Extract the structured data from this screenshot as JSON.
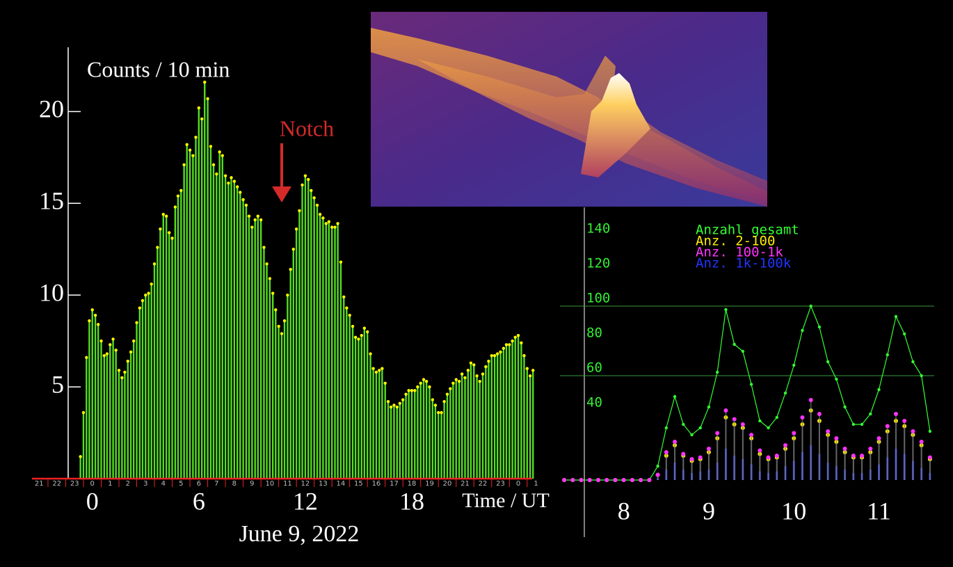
{
  "chart_data": [
    {
      "type": "bar",
      "title": "Counts / 10 min",
      "x_label": "Time / UT",
      "caption": "June 9, 2022",
      "annotation": "Notch",
      "color": "#55dd22",
      "marker_color": "#ffff00",
      "xlim": [
        -3.4,
        24.9
      ],
      "ylim": [
        0,
        23.5
      ],
      "xticks": [
        0,
        6,
        12,
        18
      ],
      "yticks": [
        5,
        10,
        15,
        20
      ],
      "hour_ticks": [
        {
          "value": -3,
          "label": "21"
        },
        {
          "value": -2,
          "label": "22"
        },
        {
          "value": -1,
          "label": "23"
        },
        0,
        1,
        2,
        3,
        4,
        5,
        6,
        7,
        8,
        9,
        10,
        11,
        12,
        13,
        14,
        15,
        16,
        17,
        18,
        19,
        20,
        21,
        22,
        23,
        {
          "value": 24,
          "label": "0"
        },
        {
          "value": 25,
          "label": "1"
        }
      ],
      "x": [
        -0.67,
        -0.5,
        -0.33,
        -0.17,
        0,
        0.17,
        0.33,
        0.5,
        0.67,
        0.83,
        1,
        1.17,
        1.33,
        1.5,
        1.67,
        1.83,
        2,
        2.17,
        2.33,
        2.5,
        2.67,
        2.83,
        3,
        3.17,
        3.33,
        3.5,
        3.67,
        3.83,
        4,
        4.17,
        4.33,
        4.5,
        4.67,
        4.83,
        5,
        5.17,
        5.33,
        5.5,
        5.67,
        5.83,
        6,
        6.17,
        6.33,
        6.5,
        6.67,
        6.83,
        7,
        7.17,
        7.33,
        7.5,
        7.67,
        7.83,
        8,
        8.17,
        8.33,
        8.5,
        8.67,
        8.83,
        9,
        9.17,
        9.33,
        9.5,
        9.67,
        9.83,
        10,
        10.17,
        10.33,
        10.5,
        10.67,
        10.83,
        11,
        11.17,
        11.33,
        11.5,
        11.67,
        11.83,
        12,
        12.17,
        12.33,
        12.5,
        12.67,
        12.83,
        13,
        13.17,
        13.33,
        13.5,
        13.67,
        13.83,
        14,
        14.17,
        14.33,
        14.5,
        14.67,
        14.83,
        15,
        15.17,
        15.33,
        15.5,
        15.67,
        15.83,
        16,
        16.17,
        16.33,
        16.5,
        16.67,
        16.83,
        17,
        17.17,
        17.33,
        17.5,
        17.67,
        17.83,
        18,
        18.17,
        18.33,
        18.5,
        18.67,
        18.83,
        19,
        19.17,
        19.33,
        19.5,
        19.67,
        19.83,
        20,
        20.17,
        20.33,
        20.5,
        20.67,
        20.83,
        21,
        21.17,
        21.33,
        21.5,
        21.67,
        21.83,
        22,
        22.17,
        22.33,
        22.5,
        22.67,
        22.83,
        23,
        23.17,
        23.33,
        23.5,
        23.67,
        23.83,
        24,
        24.17,
        24.33,
        24.5,
        24.67,
        24.83
      ],
      "values": [
        1.2,
        3.6,
        6.6,
        8.6,
        9.2,
        8.9,
        8.4,
        7.5,
        6.7,
        6.8,
        7.3,
        7.6,
        7.0,
        5.9,
        5.5,
        5.8,
        6.4,
        6.9,
        7.5,
        8.5,
        9.3,
        9.7,
        10.0,
        10.1,
        10.6,
        11.7,
        12.6,
        13.6,
        14.4,
        14.3,
        13.4,
        13.1,
        14.8,
        15.4,
        15.7,
        17.1,
        18.2,
        17.9,
        17.6,
        18.6,
        20.2,
        19.6,
        21.6,
        20.7,
        18.1,
        17.1,
        16.6,
        17.8,
        17.6,
        16.5,
        16.1,
        16.4,
        16.2,
        15.9,
        15.6,
        15.2,
        14.9,
        14.3,
        13.7,
        14.1,
        14.3,
        14.1,
        12.6,
        11.7,
        10.9,
        10.1,
        9.2,
        8.3,
        7.9,
        8.6,
        10.0,
        11.4,
        12.5,
        13.6,
        14.6,
        16.0,
        16.5,
        16.3,
        15.7,
        15.3,
        14.9,
        14.4,
        14.2,
        13.9,
        14.0,
        13.7,
        13.7,
        13.9,
        11.8,
        9.9,
        9.3,
        8.9,
        8.3,
        7.7,
        7.6,
        7.8,
        8.2,
        8.0,
        6.8,
        6.0,
        5.8,
        5.9,
        6.0,
        5.2,
        4.2,
        3.9,
        4.0,
        3.9,
        4.1,
        4.3,
        4.6,
        4.8,
        4.8,
        4.8,
        5.0,
        5.2,
        5.4,
        5.3,
        5.0,
        4.3,
        4.0,
        3.6,
        3.6,
        4.2,
        4.6,
        4.9,
        5.2,
        5.4,
        5.3,
        5.7,
        5.5,
        5.9,
        6.3,
        6.2,
        5.6,
        5.3,
        5.7,
        6.1,
        6.4,
        6.7,
        6.7,
        6.8,
        6.9,
        7.1,
        7.3,
        7.3,
        7.5,
        7.7,
        7.8,
        7.4,
        6.7,
        6.0,
        5.6,
        5.9
      ]
    },
    {
      "type": "line",
      "legend": "top-left",
      "xlim": [
        7.25,
        11.65
      ],
      "ylim": [
        0,
        156
      ],
      "xticks": [
        8,
        9,
        10,
        11
      ],
      "yticks": [
        40,
        60,
        80,
        100,
        120,
        140
      ],
      "grid_lines": [
        60,
        100
      ],
      "x": [
        7.3,
        7.4,
        7.5,
        7.6,
        7.7,
        7.8,
        7.9,
        8.0,
        8.1,
        8.2,
        8.3,
        8.4,
        8.5,
        8.6,
        8.7,
        8.8,
        8.9,
        9.0,
        9.1,
        9.2,
        9.3,
        9.4,
        9.5,
        9.6,
        9.7,
        9.8,
        9.9,
        10.0,
        10.1,
        10.2,
        10.3,
        10.4,
        10.5,
        10.6,
        10.7,
        10.8,
        10.9,
        11.0,
        11.1,
        11.2,
        11.3,
        11.4,
        11.5,
        11.6
      ],
      "series": [
        {
          "name": "Anzahl gesamt",
          "color": "#33ff33",
          "style": "line",
          "values": [
            0,
            0,
            0,
            0,
            0,
            0,
            0,
            0,
            0,
            0,
            0,
            8,
            30,
            48,
            32,
            26,
            30,
            42,
            62,
            98,
            78,
            74,
            55,
            34,
            30,
            36,
            50,
            66,
            86,
            100,
            88,
            68,
            58,
            42,
            32,
            32,
            38,
            52,
            72,
            94,
            84,
            68,
            60,
            28
          ]
        },
        {
          "name": "Anz. 2-100",
          "color": "#ffee00",
          "style": "dots",
          "values": [
            0,
            0,
            0,
            0,
            0,
            0,
            0,
            0,
            0,
            0,
            0,
            3,
            14,
            20,
            14,
            11,
            12,
            16,
            24,
            36,
            32,
            30,
            24,
            15,
            12,
            13,
            18,
            24,
            32,
            40,
            34,
            26,
            22,
            16,
            13,
            13,
            16,
            22,
            28,
            34,
            31,
            26,
            20,
            12
          ]
        },
        {
          "name": "Anz. 100-1k",
          "color": "#ff33ff",
          "style": "dots",
          "values": [
            0,
            0,
            0,
            0,
            0,
            0,
            0,
            0,
            0,
            0,
            0,
            3,
            16,
            22,
            15,
            12,
            13,
            18,
            27,
            40,
            35,
            32,
            26,
            17,
            13,
            14,
            20,
            27,
            36,
            46,
            38,
            28,
            24,
            18,
            14,
            14,
            18,
            24,
            31,
            38,
            34,
            28,
            22,
            13
          ]
        },
        {
          "name": "Anz. 1k-100k",
          "color": "#2233ff",
          "style": "bars",
          "values": [
            0,
            0,
            0,
            0,
            0,
            0,
            0,
            0,
            0,
            0,
            0,
            1,
            6,
            10,
            6,
            4,
            5,
            6,
            10,
            18,
            14,
            12,
            9,
            5,
            4,
            5,
            8,
            11,
            16,
            20,
            15,
            10,
            8,
            6,
            4,
            4,
            6,
            9,
            13,
            18,
            15,
            11,
            7,
            4
          ]
        }
      ]
    }
  ]
}
